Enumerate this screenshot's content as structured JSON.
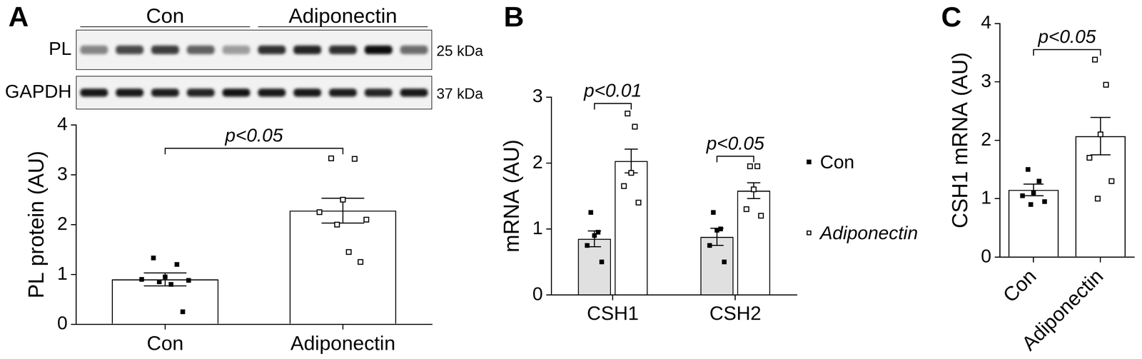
{
  "blot": {
    "groups": [
      "Con",
      "Adiponectin"
    ],
    "rows": [
      {
        "label": "PL",
        "size": "25 kDa",
        "intensity": [
          0.45,
          0.7,
          0.75,
          0.6,
          0.35,
          0.8,
          0.85,
          0.8,
          0.95,
          0.55
        ]
      },
      {
        "label": "GAPDH",
        "size": "37 kDa",
        "intensity": [
          0.9,
          0.9,
          0.88,
          0.85,
          0.92,
          0.9,
          0.9,
          0.88,
          0.85,
          0.9
        ]
      }
    ]
  },
  "chart_data": [
    {
      "panel": "A",
      "type": "bar",
      "categories": [
        "Con",
        "Adiponectin"
      ],
      "values": [
        0.9,
        2.28
      ],
      "sem": [
        0.13,
        0.25
      ],
      "color": "#ffffff",
      "points": [
        {
          "marker": "square",
          "values": [
            1.33,
            1.2,
            0.95,
            0.9,
            0.88,
            0.85,
            0.8,
            0.25
          ]
        },
        {
          "marker": "square-open",
          "values": [
            3.33,
            3.32,
            2.5,
            2.25,
            2.1,
            2.0,
            1.45,
            1.25
          ]
        }
      ],
      "y_label": "PL protein (AU)",
      "ylim": [
        0,
        4
      ],
      "yticks": [
        0,
        1,
        2,
        3,
        4
      ],
      "annotations": [
        {
          "text": "p<0.05",
          "from": "Con",
          "to": "Adiponectin"
        }
      ],
      "grid": false
    },
    {
      "panel": "B",
      "type": "bar",
      "categories": [
        "CSH1",
        "CSH2"
      ],
      "series": [
        {
          "name": "Con",
          "color": "#e0e0e0",
          "marker": "square",
          "values": [
            0.85,
            0.88
          ],
          "sem": [
            0.12,
            0.13
          ],
          "points": [
            [
              1.25,
              0.95,
              0.9,
              0.75,
              0.5
            ],
            [
              1.25,
              1.0,
              0.98,
              0.75,
              0.5
            ]
          ]
        },
        {
          "name": "Adiponectin",
          "color": "#ffffff",
          "marker": "square-open",
          "values": [
            2.03,
            1.58
          ],
          "sem": [
            0.18,
            0.12
          ],
          "points": [
            [
              2.75,
              2.55,
              1.85,
              1.65,
              1.4
            ],
            [
              1.95,
              1.95,
              1.6,
              1.3,
              1.2
            ]
          ]
        }
      ],
      "y_label": "mRNA (AU)",
      "ylim": [
        0,
        3
      ],
      "yticks": [
        0,
        1,
        2,
        3
      ],
      "annotations": [
        {
          "text": "p<0.01",
          "category": "CSH1"
        },
        {
          "text": "p<0.05",
          "category": "CSH2"
        }
      ],
      "legend": "right",
      "grid": false
    },
    {
      "panel": "C",
      "type": "bar",
      "categories": [
        "Con",
        "Adiponectin"
      ],
      "values": [
        1.15,
        2.07
      ],
      "sem": [
        0.1,
        0.32
      ],
      "color": "#ffffff",
      "points": [
        {
          "marker": "square",
          "values": [
            1.5,
            1.3,
            1.1,
            1.05,
            0.95,
            0.9
          ]
        },
        {
          "marker": "square-open",
          "values": [
            3.38,
            2.95,
            2.1,
            1.7,
            1.3,
            1.0
          ]
        }
      ],
      "y_label": "CSH1 mRNA (AU)",
      "ylim": [
        0,
        4
      ],
      "yticks": [
        0,
        1,
        2,
        3,
        4
      ],
      "annotations": [
        {
          "text": "p<0.05",
          "from": "Con",
          "to": "Adiponectin"
        }
      ],
      "grid": false
    }
  ]
}
